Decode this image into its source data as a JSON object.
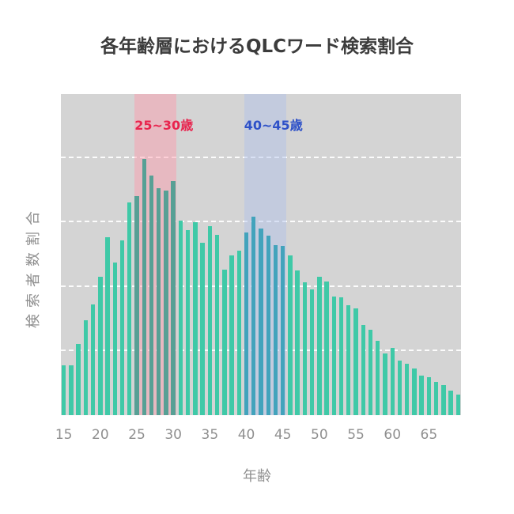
{
  "title": "各年齢層におけるQLCワード検索割合",
  "chart_data": {
    "type": "bar",
    "title": "各年齢層におけるQLCワード検索割合",
    "xlabel": "年齢",
    "ylabel": "検索者数割合",
    "x_ticks": [
      15,
      20,
      25,
      30,
      35,
      40,
      45,
      50,
      55,
      60,
      65
    ],
    "xlim": [
      14.6,
      69.4
    ],
    "ylim": [
      0,
      5
    ],
    "y_tick_labels_visible": false,
    "grid_values": [
      1,
      2,
      3,
      4
    ],
    "ages": [
      15,
      16,
      17,
      18,
      19,
      20,
      21,
      22,
      23,
      24,
      25,
      26,
      27,
      28,
      29,
      30,
      31,
      32,
      33,
      34,
      35,
      36,
      37,
      38,
      39,
      40,
      41,
      42,
      43,
      44,
      45,
      46,
      47,
      48,
      49,
      50,
      51,
      52,
      53,
      54,
      55,
      56,
      57,
      58,
      59,
      60,
      61,
      62,
      63,
      64,
      65,
      66,
      67,
      68,
      69
    ],
    "values": [
      0.78,
      0.77,
      1.11,
      1.48,
      1.73,
      2.16,
      2.77,
      2.38,
      2.72,
      3.31,
      3.41,
      3.99,
      3.73,
      3.54,
      3.5,
      3.65,
      3.03,
      2.88,
      3.01,
      2.68,
      2.94,
      2.81,
      2.27,
      2.49,
      2.56,
      2.84,
      3.09,
      2.91,
      2.8,
      2.65,
      2.64,
      2.49,
      2.25,
      2.07,
      1.96,
      2.15,
      2.08,
      1.85,
      1.84,
      1.71,
      1.66,
      1.4,
      1.33,
      1.16,
      0.96,
      1.05,
      0.85,
      0.8,
      0.73,
      0.62,
      0.59,
      0.52,
      0.47,
      0.38,
      0.32
    ],
    "highlight_bands": [
      {
        "label": "25~30歳",
        "age_range": [
          25,
          30
        ],
        "span": [
          24.7,
          30.45
        ],
        "fill": "rgba(254,152,170,0.45)",
        "label_color": "#e8244e",
        "bar_color": "#57a095"
      },
      {
        "label": "40~45歳",
        "age_range": [
          40,
          45
        ],
        "span": [
          39.7,
          45.45
        ],
        "fill": "rgba(176,192,236,0.45)",
        "label_color": "#2e51c8",
        "bar_color": "#42a3bc"
      }
    ],
    "colors": {
      "bar": "#3fc9a7",
      "plot_background": "#d4d4d4",
      "gridline": "#ffffff",
      "title_text": "#3c3c3c",
      "axis_text": "#8f8f8f",
      "figure_background": "#ffffff"
    }
  }
}
